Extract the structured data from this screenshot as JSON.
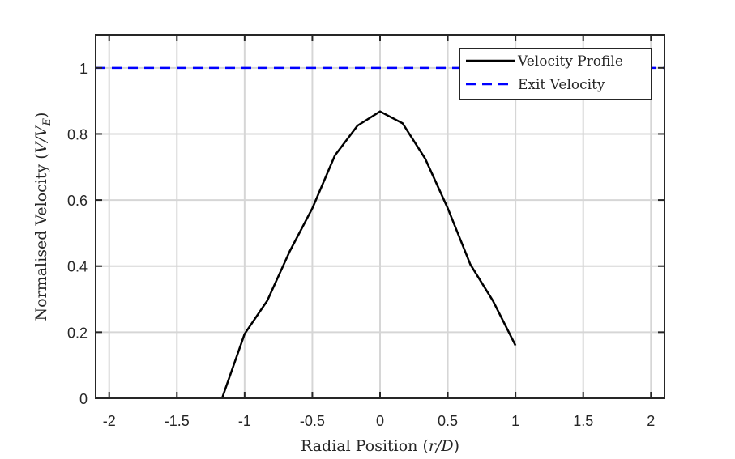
{
  "chart_data": {
    "type": "line",
    "xlabel_text": "Radial Position (",
    "xlabel_var": "r/D",
    "xlabel_close": ")",
    "ylabel_text": "Normalised Velocity (",
    "ylabel_var": "V/V",
    "ylabel_sub": "E",
    "ylabel_close": ")",
    "xlim": [
      -2.1,
      2.1
    ],
    "ylim": [
      0,
      1.1
    ],
    "x_ticks": [
      -2,
      -1.5,
      -1,
      -0.5,
      0,
      0.5,
      1,
      1.5,
      2
    ],
    "x_tick_labels": [
      "-2",
      "-1.5",
      "-1",
      "-0.5",
      "0",
      "0.5",
      "1",
      "1.5",
      "2"
    ],
    "y_ticks": [
      0,
      0.2,
      0.4,
      0.6,
      0.8,
      1
    ],
    "y_tick_labels": [
      "0",
      "0.2",
      "0.4",
      "0.6",
      "0.8",
      "1"
    ],
    "grid": true,
    "legend_position": "top-right",
    "series": [
      {
        "name": "Velocity Profile",
        "color": "#000000",
        "style": "solid",
        "x": [
          -1.1667,
          -1.0,
          -0.8333,
          -0.6667,
          -0.5,
          -0.3333,
          -0.1667,
          0.0,
          0.1667,
          0.3333,
          0.5,
          0.6667,
          0.8333,
          1.0
        ],
        "y": [
          0.0,
          0.195,
          0.295,
          0.445,
          0.575,
          0.735,
          0.825,
          0.868,
          0.832,
          0.725,
          0.575,
          0.405,
          0.295,
          0.16
        ]
      },
      {
        "name": "Exit Velocity",
        "color": "#0000ff",
        "style": "dashed",
        "x": [
          -2.1,
          2.1
        ],
        "y": [
          1.0,
          1.0
        ]
      }
    ]
  }
}
